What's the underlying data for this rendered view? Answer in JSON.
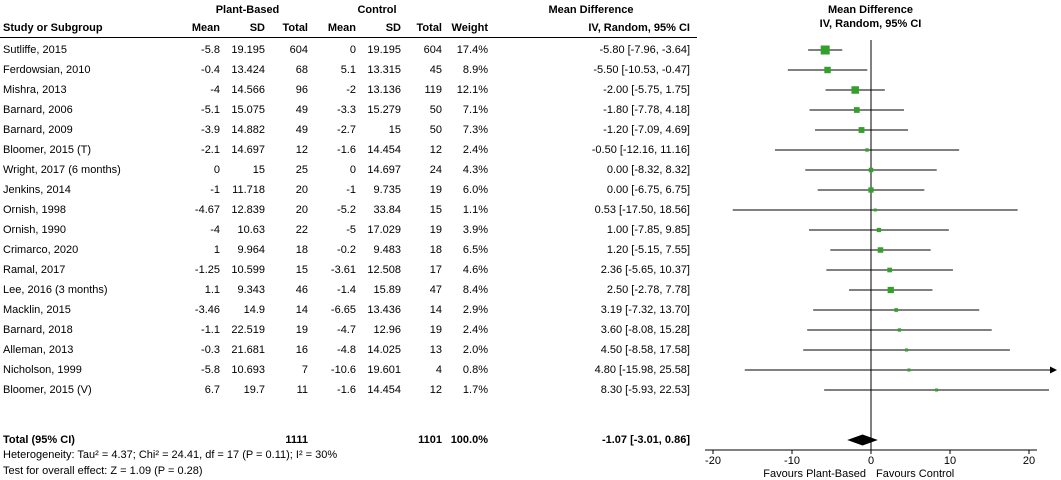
{
  "header": {
    "group_treatment": "Plant-Based",
    "group_control": "Control",
    "effect": "Mean Difference",
    "cols": {
      "study": "Study or Subgroup",
      "mean": "Mean",
      "sd": "SD",
      "total": "Total",
      "weight": "Weight",
      "ci": "IV, Random, 95% CI"
    }
  },
  "chart_data": {
    "type": "forest",
    "effect_measure": "Mean Difference",
    "method": "IV, Random, 95% CI",
    "marker_color": "#33a02c",
    "diamond_color": "#000000",
    "x_ticks": [
      -20,
      -10,
      0,
      10,
      20
    ],
    "xlim": [
      -25,
      25
    ],
    "favours_left": "Favours Plant-Based",
    "favours_right": "Favours Control",
    "studies": [
      {
        "name": "Sutliffe, 2015",
        "treatment": [
          "-5.8",
          "19.195",
          "604"
        ],
        "control": [
          "0",
          "19.195",
          "604"
        ],
        "weight": "17.4%",
        "w": 17.4,
        "ci": "-5.80 [-7.96, -3.64]",
        "est": [
          -5.8,
          -7.96,
          -3.64
        ]
      },
      {
        "name": "Ferdowsian, 2010",
        "treatment": [
          "-0.4",
          "13.424",
          "68"
        ],
        "control": [
          "5.1",
          "13.315",
          "45"
        ],
        "weight": "8.9%",
        "w": 8.9,
        "ci": "-5.50 [-10.53, -0.47]",
        "est": [
          -5.5,
          -10.53,
          -0.47
        ]
      },
      {
        "name": "Mishra, 2013",
        "treatment": [
          "-4",
          "14.566",
          "96"
        ],
        "control": [
          "-2",
          "13.136",
          "119"
        ],
        "weight": "12.1%",
        "w": 12.1,
        "ci": "-2.00 [-5.75, 1.75]",
        "est": [
          -2.0,
          -5.75,
          1.75
        ]
      },
      {
        "name": "Barnard, 2006",
        "treatment": [
          "-5.1",
          "15.075",
          "49"
        ],
        "control": [
          "-3.3",
          "15.279",
          "50"
        ],
        "weight": "7.1%",
        "w": 7.1,
        "ci": "-1.80 [-7.78, 4.18]",
        "est": [
          -1.8,
          -7.78,
          4.18
        ]
      },
      {
        "name": "Barnard, 2009",
        "treatment": [
          "-3.9",
          "14.882",
          "49"
        ],
        "control": [
          "-2.7",
          "15",
          "50"
        ],
        "weight": "7.3%",
        "w": 7.3,
        "ci": "-1.20 [-7.09, 4.69]",
        "est": [
          -1.2,
          -7.09,
          4.69
        ]
      },
      {
        "name": "Bloomer, 2015 (T)",
        "treatment": [
          "-2.1",
          "14.697",
          "12"
        ],
        "control": [
          "-1.6",
          "14.454",
          "12"
        ],
        "weight": "2.4%",
        "w": 2.4,
        "ci": "-0.50 [-12.16, 11.16]",
        "est": [
          -0.5,
          -12.16,
          11.16
        ]
      },
      {
        "name": "Wright, 2017 (6 months)",
        "treatment": [
          "0",
          "15",
          "25"
        ],
        "control": [
          "0",
          "14.697",
          "24"
        ],
        "weight": "4.3%",
        "w": 4.3,
        "ci": "0.00 [-8.32, 8.32]",
        "est": [
          0.0,
          -8.32,
          8.32
        ]
      },
      {
        "name": "Jenkins, 2014",
        "treatment": [
          "-1",
          "11.718",
          "20"
        ],
        "control": [
          "-1",
          "9.735",
          "19"
        ],
        "weight": "6.0%",
        "w": 6.0,
        "ci": "0.00 [-6.75, 6.75]",
        "est": [
          0.0,
          -6.75,
          6.75
        ]
      },
      {
        "name": "Ornish, 1998",
        "treatment": [
          "-4.67",
          "12.839",
          "20"
        ],
        "control": [
          "-5.2",
          "33.84",
          "15"
        ],
        "weight": "1.1%",
        "w": 1.1,
        "ci": "0.53 [-17.50, 18.56]",
        "est": [
          0.53,
          -17.5,
          18.56
        ]
      },
      {
        "name": "Ornish, 1990",
        "treatment": [
          "-4",
          "10.63",
          "22"
        ],
        "control": [
          "-5",
          "17.029",
          "19"
        ],
        "weight": "3.9%",
        "w": 3.9,
        "ci": "1.00 [-7.85, 9.85]",
        "est": [
          1.0,
          -7.85,
          9.85
        ]
      },
      {
        "name": "Crimarco, 2020",
        "treatment": [
          "1",
          "9.964",
          "18"
        ],
        "control": [
          "-0.2",
          "9.483",
          "18"
        ],
        "weight": "6.5%",
        "w": 6.5,
        "ci": "1.20 [-5.15, 7.55]",
        "est": [
          1.2,
          -5.15,
          7.55
        ]
      },
      {
        "name": "Ramal, 2017",
        "treatment": [
          "-1.25",
          "10.599",
          "15"
        ],
        "control": [
          "-3.61",
          "12.508",
          "17"
        ],
        "weight": "4.6%",
        "w": 4.6,
        "ci": "2.36 [-5.65, 10.37]",
        "est": [
          2.36,
          -5.65,
          10.37
        ]
      },
      {
        "name": "Lee, 2016 (3 months)",
        "treatment": [
          "1.1",
          "9.343",
          "46"
        ],
        "control": [
          "-1.4",
          "15.89",
          "47"
        ],
        "weight": "8.4%",
        "w": 8.4,
        "ci": "2.50 [-2.78, 7.78]",
        "est": [
          2.5,
          -2.78,
          7.78
        ]
      },
      {
        "name": "Macklin, 2015",
        "treatment": [
          "-3.46",
          "14.9",
          "14"
        ],
        "control": [
          "-6.65",
          "13.436",
          "14"
        ],
        "weight": "2.9%",
        "w": 2.9,
        "ci": "3.19 [-7.32, 13.70]",
        "est": [
          3.19,
          -7.32,
          13.7
        ]
      },
      {
        "name": "Barnard, 2018",
        "treatment": [
          "-1.1",
          "22.519",
          "19"
        ],
        "control": [
          "-4.7",
          "12.96",
          "19"
        ],
        "weight": "2.4%",
        "w": 2.4,
        "ci": "3.60 [-8.08, 15.28]",
        "est": [
          3.6,
          -8.08,
          15.28
        ]
      },
      {
        "name": "Alleman, 2013",
        "treatment": [
          "-0.3",
          "21.681",
          "16"
        ],
        "control": [
          "-4.8",
          "14.025",
          "13"
        ],
        "weight": "2.0%",
        "w": 2.0,
        "ci": "4.50 [-8.58, 17.58]",
        "est": [
          4.5,
          -8.58,
          17.58
        ]
      },
      {
        "name": "Nicholson, 1999",
        "treatment": [
          "-5.8",
          "10.693",
          "7"
        ],
        "control": [
          "-10.6",
          "19.601",
          "4"
        ],
        "weight": "0.8%",
        "w": 0.8,
        "ci": "4.80 [-15.98, 25.58]",
        "est": [
          4.8,
          -15.98,
          25.58
        ]
      },
      {
        "name": "Bloomer, 2015 (V)",
        "treatment": [
          "6.7",
          "19.7",
          "11"
        ],
        "control": [
          "-1.6",
          "14.454",
          "12"
        ],
        "weight": "1.7%",
        "w": 1.7,
        "ci": "8.30 [-5.93, 22.53]",
        "est": [
          8.3,
          -5.93,
          22.53
        ]
      }
    ],
    "total": {
      "label": "Total (95% CI)",
      "treatment_total": "1111",
      "control_total": "1101",
      "weight": "100.0%",
      "ci": "-1.07 [-3.01, 0.86]",
      "est": [
        -1.07,
        -3.01,
        0.86
      ]
    }
  },
  "footer": {
    "heterogeneity": "Heterogeneity: Tau² = 4.37; Chi² = 24.41, df = 17 (P = 0.11); I² = 30%",
    "overall_effect": "Test for overall effect: Z = 1.09 (P = 0.28)"
  }
}
